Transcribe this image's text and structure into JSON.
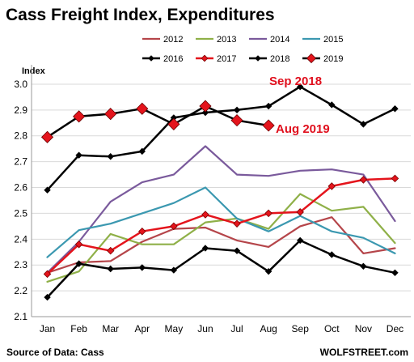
{
  "chart_data": {
    "type": "line",
    "title": "Cass Freight Index, Expenditures",
    "ylabel": "Index",
    "xlabel": "",
    "categories": [
      "Jan",
      "Feb",
      "Mar",
      "Apr",
      "May",
      "Jun",
      "Jul",
      "Aug",
      "Sep",
      "Oct",
      "Nov",
      "Dec"
    ],
    "yticks": [
      "2.1",
      "2.2",
      "2.3",
      "2.4",
      "2.5",
      "2.6",
      "2.7",
      "2.8",
      "2.9",
      "3.0"
    ],
    "ylim": [
      2.1,
      3.05
    ],
    "grid": "horizontal",
    "legend_position": "top-right",
    "series": [
      {
        "name": "2012",
        "color": "#b5454a",
        "marker": "none",
        "width": 2.2,
        "values": [
          2.27,
          2.31,
          2.315,
          2.39,
          2.44,
          2.445,
          2.395,
          2.37,
          2.45,
          2.485,
          2.345,
          2.365
        ]
      },
      {
        "name": "2013",
        "color": "#8fb048",
        "marker": "none",
        "width": 2.2,
        "values": [
          2.235,
          2.275,
          2.42,
          2.38,
          2.38,
          2.465,
          2.48,
          2.44,
          2.575,
          2.51,
          2.525,
          2.385
        ]
      },
      {
        "name": "2014",
        "color": "#7a5a9c",
        "marker": "none",
        "width": 2.2,
        "values": [
          2.27,
          2.39,
          2.545,
          2.62,
          2.65,
          2.76,
          2.65,
          2.645,
          2.665,
          2.67,
          2.65,
          2.47
        ]
      },
      {
        "name": "2015",
        "color": "#3b98b0",
        "marker": "none",
        "width": 2.2,
        "values": [
          2.33,
          2.435,
          2.46,
          2.5,
          2.54,
          2.6,
          2.48,
          2.43,
          2.49,
          2.43,
          2.405,
          2.345
        ]
      },
      {
        "name": "2016",
        "color": "#000000",
        "marker": "diamond",
        "width": 2.5,
        "values": [
          2.175,
          2.305,
          2.285,
          2.29,
          2.28,
          2.365,
          2.355,
          2.275,
          2.395,
          2.34,
          2.295,
          2.27
        ]
      },
      {
        "name": "2017",
        "color": "#e4141c",
        "marker": "diamond",
        "width": 2.5,
        "values": [
          2.265,
          2.38,
          2.355,
          2.43,
          2.45,
          2.495,
          2.46,
          2.5,
          2.505,
          2.605,
          2.63,
          2.635
        ]
      },
      {
        "name": "2018",
        "color": "#000000",
        "marker": "diamond",
        "width": 2.5,
        "values": [
          2.59,
          2.725,
          2.72,
          2.74,
          2.87,
          2.89,
          2.9,
          2.915,
          2.99,
          2.92,
          2.845,
          2.905
        ]
      },
      {
        "name": "2019",
        "color": "#000000",
        "marker": "diamond-big",
        "width": 2.5,
        "values": [
          2.795,
          2.875,
          2.885,
          2.905,
          2.845,
          2.915,
          2.86,
          2.84,
          null,
          null,
          null,
          null
        ]
      }
    ],
    "annotations": [
      {
        "text": "Sep 2018",
        "color": "#e0101e"
      },
      {
        "text": "Aug 2019",
        "color": "#e0101e"
      }
    ],
    "source": "Source of Data: Cass",
    "watermark": "WOLFSTREET.com"
  }
}
